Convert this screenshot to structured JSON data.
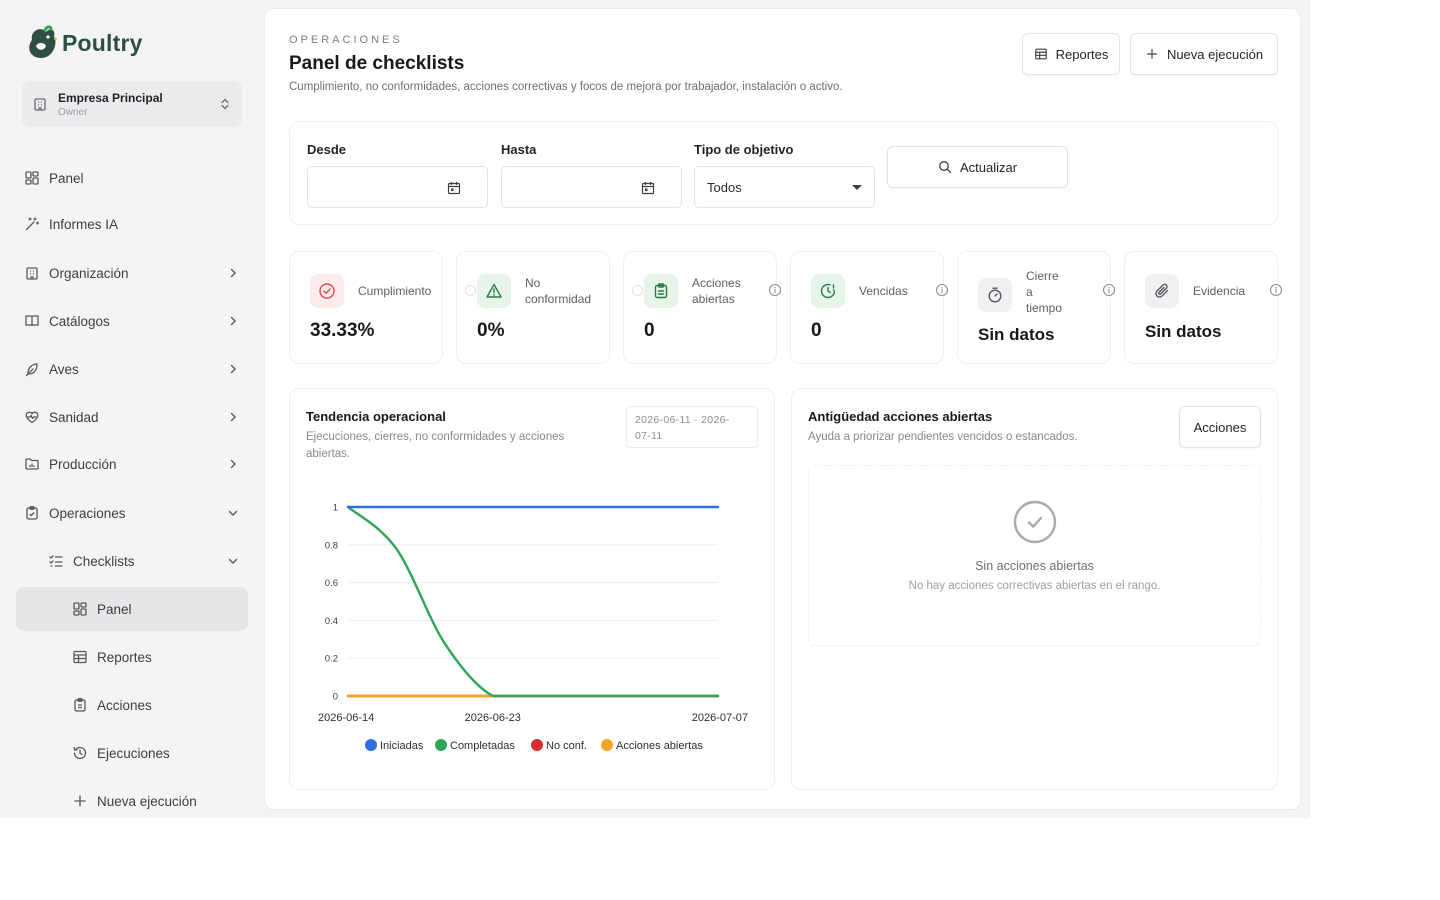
{
  "brand": {
    "name": "Poultry"
  },
  "workspace": {
    "name": "Empresa Principal",
    "role": "Owner"
  },
  "nav": {
    "panel": "Panel",
    "informes": "Informes IA",
    "organizacion": "Organización",
    "catalogos": "Catálogos",
    "aves": "Aves",
    "sanidad": "Sanidad",
    "produccion": "Producción",
    "operaciones": "Operaciones",
    "checklists": "Checklists",
    "sub": {
      "panel": "Panel",
      "reportes": "Reportes",
      "acciones": "Acciones",
      "ejecuciones": "Ejecuciones",
      "nueva": "Nueva ejecución"
    }
  },
  "header": {
    "eyebrow": "OPERACIONES",
    "title": "Panel de checklists",
    "subtitle": "Cumplimiento, no conformidades, acciones correctivas y focos de mejora por trabajador, instalación o activo.",
    "reportes_label": "Reportes",
    "nueva_label": "Nueva ejecución"
  },
  "filters": {
    "desde_label": "Desde",
    "desde_value": "",
    "hasta_label": "Hasta",
    "hasta_value": "",
    "tipo_label": "Tipo de objetivo",
    "tipo_value": "Todos",
    "actualizar_label": "Actualizar"
  },
  "kpis": [
    {
      "label": "Cumplimiento",
      "value": "33.33%",
      "icon": "check-circle-icon",
      "color": "#e5484d",
      "bg": "#fdecec"
    },
    {
      "label_lines": [
        "No",
        "conformidad"
      ],
      "value": "0%",
      "icon": "warning-triangle-icon",
      "color": "#2a7d46",
      "bg": "#e6f4ea"
    },
    {
      "label_lines": [
        "Acciones",
        "abiertas"
      ],
      "value": "0",
      "icon": "clipboard-icon",
      "color": "#2a7d46",
      "bg": "#e6f4ea"
    },
    {
      "label": "Vencidas",
      "value": "0",
      "icon": "clock-alert-icon",
      "color": "#2a7d46",
      "bg": "#e6f4ea"
    },
    {
      "label_lines": [
        "Cierre",
        "a",
        "tiempo"
      ],
      "value": "Sin datos",
      "icon": "timer-icon",
      "color": "#555a61",
      "bg": "#f1f1f3"
    },
    {
      "label": "Evidencia",
      "value": "Sin datos",
      "icon": "paperclip-icon",
      "color": "#555a61",
      "bg": "#f1f1f3"
    }
  ],
  "trend": {
    "title": "Tendencia operacional",
    "subtitle_lines": [
      "Ejecuciones, cierres, no conformidades y acciones",
      "abiertas."
    ],
    "range_lines": [
      "2026-06-11 · 2026-",
      "07-11"
    ]
  },
  "aging": {
    "title": "Antigüedad acciones abiertas",
    "subtitle": "Ayuda a priorizar pendientes vencidos o estancados.",
    "button": "Acciones",
    "empty_title": "Sin acciones abiertas",
    "empty_sub": "No hay acciones correctivas abiertas en el rango."
  },
  "chart_data": {
    "type": "line",
    "x": [
      "2026-06-14",
      "2026-06-17",
      "2026-06-20",
      "2026-06-23",
      "2026-06-26",
      "2026-06-29",
      "2026-07-02",
      "2026-07-05",
      "2026-07-07"
    ],
    "x_ticks": [
      "2026-06-14",
      "2026-06-23",
      "2026-07-07"
    ],
    "y_ticks": [
      0,
      0.2,
      0.4,
      0.6,
      0.8,
      1
    ],
    "ylim": [
      0,
      1
    ],
    "legend_position": "bottom",
    "series": [
      {
        "name": "Iniciadas",
        "color": "#2f6fe0",
        "values": [
          1,
          1,
          1,
          1,
          1,
          1,
          1,
          1,
          1
        ]
      },
      {
        "name": "Completadas",
        "color": "#2fa55a",
        "values": [
          1,
          0.78,
          0.28,
          0,
          0,
          0,
          0,
          0,
          0
        ]
      },
      {
        "name": "No conf.",
        "color": "#d92d2d",
        "values": [
          0,
          0,
          0,
          0,
          0,
          0,
          0,
          0,
          0
        ]
      },
      {
        "name": "Acciones abiertas",
        "color": "#f5a524",
        "values": [
          0,
          0,
          0,
          0,
          0,
          0,
          0,
          0,
          0
        ]
      }
    ]
  }
}
